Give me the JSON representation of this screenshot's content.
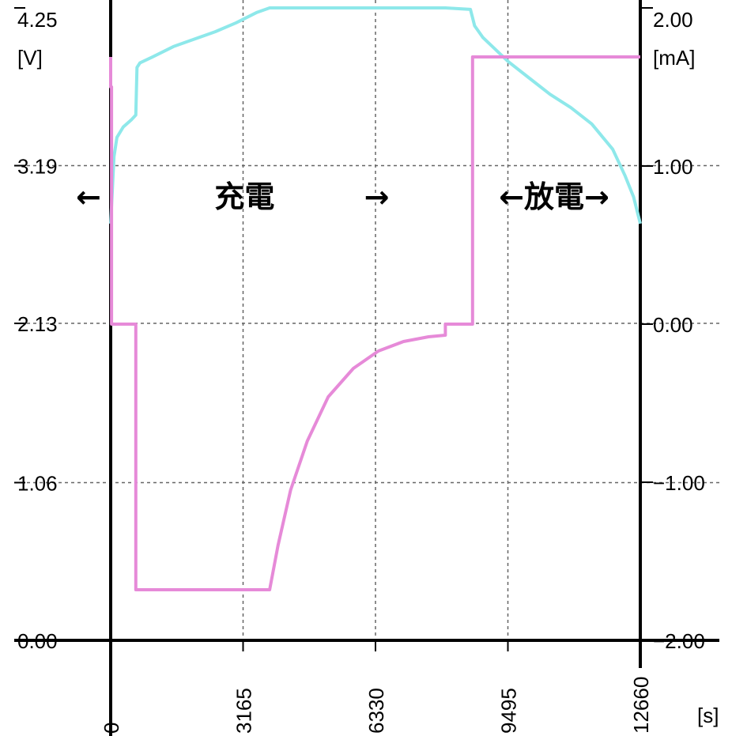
{
  "chart_data": {
    "type": "line",
    "x_unit_label": "[s]",
    "y_left_unit_label": "[V]",
    "y_right_unit_label": "[mA]",
    "x_ticks": [
      "0",
      "3165",
      "6330",
      "9495",
      "12660"
    ],
    "x_tick_values": [
      0,
      3165,
      6330,
      9495,
      12660
    ],
    "xlim": [
      0,
      12660
    ],
    "y_left_ticks": [
      "4.25",
      "3.19",
      "2.13",
      "1.06",
      "0.00"
    ],
    "y_left_tick_values": [
      4.25,
      3.19,
      2.13,
      1.06,
      0.0
    ],
    "y_left_lim": [
      0,
      4.25
    ],
    "y_right_ticks": [
      "2.00",
      "1.00",
      "0.00",
      "−1.00",
      "−2.00"
    ],
    "y_right_tick_values": [
      2.0,
      1.0,
      0.0,
      -1.0,
      -2.0
    ],
    "y_right_lim": [
      -2,
      2
    ],
    "grid": true,
    "series": [
      {
        "axis": "left",
        "color": "#8ee8ea",
        "x": [
          0,
          80,
          150,
          300,
          500,
          600,
          630,
          700,
          1000,
          1500,
          2000,
          2500,
          3000,
          3500,
          3800,
          4000,
          5000,
          6000,
          7000,
          8000,
          8600,
          8700,
          8900,
          9200,
          9500,
          10000,
          10500,
          11000,
          11500,
          12000,
          12300,
          12500,
          12660
        ],
        "y": [
          2.8,
          3.25,
          3.38,
          3.45,
          3.5,
          3.53,
          3.85,
          3.88,
          3.92,
          3.99,
          4.04,
          4.09,
          4.15,
          4.22,
          4.25,
          4.25,
          4.25,
          4.25,
          4.25,
          4.25,
          4.24,
          4.13,
          4.05,
          3.97,
          3.89,
          3.78,
          3.67,
          3.58,
          3.47,
          3.3,
          3.12,
          2.98,
          2.8
        ]
      },
      {
        "axis": "right",
        "color": "#e68ad8",
        "x": [
          0,
          0,
          20,
          20,
          600,
          600,
          3800,
          4000,
          4300,
          4700,
          5200,
          5800,
          6400,
          7000,
          7600,
          8000,
          8000,
          8650,
          8650,
          12660
        ],
        "y": [
          1.69,
          1.5,
          1.5,
          0.0,
          0.0,
          -1.68,
          -1.68,
          -1.4,
          -1.05,
          -0.74,
          -0.46,
          -0.28,
          -0.17,
          -0.11,
          -0.08,
          -0.07,
          0.0,
          0.0,
          1.69,
          1.69
        ]
      }
    ],
    "annotations": [
      {
        "label": "←",
        "x": 0
      },
      {
        "label": "充電",
        "x": 3200
      },
      {
        "label": "→",
        "x": 6360
      },
      {
        "label": "←放電→",
        "x": 10600
      }
    ]
  }
}
